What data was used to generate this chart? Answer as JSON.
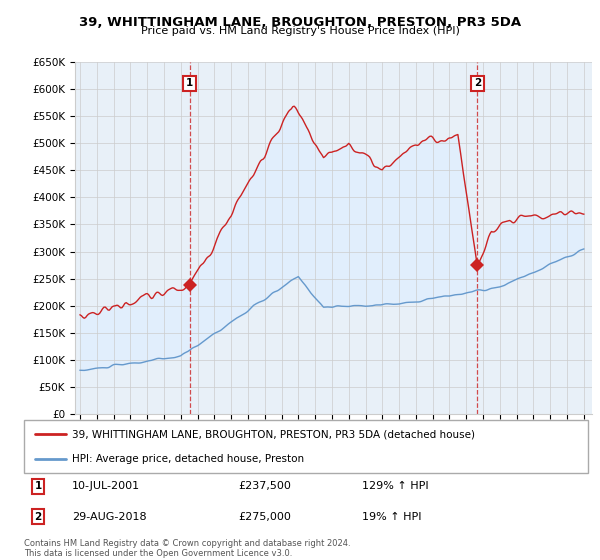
{
  "title": "39, WHITTINGHAM LANE, BROUGHTON, PRESTON, PR3 5DA",
  "subtitle": "Price paid vs. HM Land Registry's House Price Index (HPI)",
  "ylabel_ticks": [
    "£0",
    "£50K",
    "£100K",
    "£150K",
    "£200K",
    "£250K",
    "£300K",
    "£350K",
    "£400K",
    "£450K",
    "£500K",
    "£550K",
    "£600K",
    "£650K"
  ],
  "ytick_values": [
    0,
    50000,
    100000,
    150000,
    200000,
    250000,
    300000,
    350000,
    400000,
    450000,
    500000,
    550000,
    600000,
    650000
  ],
  "house_line_color": "#cc2222",
  "hpi_line_color": "#6699cc",
  "fill_color": "#ddeeff",
  "bg_color": "#e8f0f8",
  "sale1_date": 2001.53,
  "sale1_price": 237500,
  "sale2_date": 2018.66,
  "sale2_price": 275000,
  "legend_house": "39, WHITTINGHAM LANE, BROUGHTON, PRESTON, PR3 5DA (detached house)",
  "legend_hpi": "HPI: Average price, detached house, Preston",
  "footnote": "Contains HM Land Registry data © Crown copyright and database right 2024.\nThis data is licensed under the Open Government Licence v3.0.",
  "xmin": 1994.7,
  "xmax": 2025.5,
  "ymin": 0,
  "ymax": 650000
}
